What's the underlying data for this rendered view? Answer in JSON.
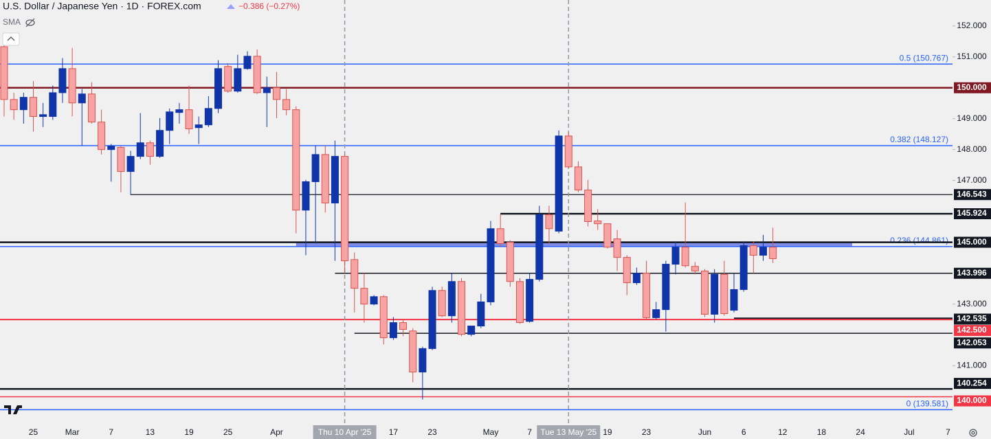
{
  "header": {
    "title": "U.S. Dollar / Japanese Yen · 1D · FOREX.com",
    "change": "−0.386 (−0.27%)",
    "indicator": "SMA"
  },
  "chart_data": {
    "type": "candlestick",
    "categories": [
      null,
      null,
      null,
      "25",
      null,
      null,
      null,
      "Mar",
      null,
      null,
      null,
      "7",
      null,
      null,
      null,
      "13",
      null,
      null,
      null,
      "19",
      null,
      null,
      null,
      "25",
      null,
      null,
      null,
      null,
      "Apr",
      null,
      null,
      null,
      "7",
      null,
      null,
      "Thu 10 Apr '25",
      null,
      null,
      null,
      null,
      "17",
      null,
      null,
      null,
      "23",
      null,
      null,
      null,
      null,
      null,
      "May",
      null,
      null,
      null,
      "7",
      null,
      null,
      null,
      "Tue 13 May '25",
      null,
      null,
      null,
      "19",
      null,
      null,
      null,
      "23",
      null,
      null,
      null,
      null,
      null,
      "Jun",
      null,
      null,
      null,
      "6",
      null,
      null,
      null,
      "12",
      null,
      null,
      null,
      "18",
      null,
      null,
      null,
      "24",
      null,
      null,
      null,
      null,
      "Jul",
      null,
      null,
      null,
      "7"
    ],
    "open": [
      151.33,
      149.62,
      149.29,
      149.69,
      149.07,
      149.07,
      149.84,
      150.62,
      149.51,
      149.8,
      148.89,
      148.0,
      148.07,
      147.29,
      147.78,
      148.22,
      147.78,
      148.62,
      149.2,
      149.29,
      148.71,
      148.8,
      149.33,
      150.69,
      149.89,
      150.62,
      151.02,
      149.84,
      150.0,
      149.62,
      149.29,
      146.04,
      146.96,
      147.84,
      146.27,
      147.78,
      144.44,
      143.51,
      143.0,
      143.24,
      141.91,
      142.4,
      142.13,
      140.8,
      141.56,
      143.44,
      142.62,
      143.73,
      142.02,
      142.29,
      143.07,
      145.44,
      145.0,
      143.73,
      142.44,
      143.8,
      145.89,
      145.36,
      148.44,
      147.44,
      146.69,
      145.69,
      145.6,
      145.11,
      144.51,
      143.69,
      144.0,
      142.56,
      142.82,
      144.29,
      144.84,
      144.22,
      144.07,
      142.67,
      143.96,
      142.8,
      143.47,
      144.89,
      144.58,
      144.84,
      null,
      null,
      null,
      null,
      null,
      null,
      null,
      null,
      null,
      null,
      null,
      null,
      null,
      null,
      null,
      null,
      null,
      null
    ],
    "high": [
      151.62,
      149.84,
      149.84,
      150.22,
      149.51,
      150.07,
      150.96,
      151.29,
      149.96,
      150.18,
      149.29,
      148.18,
      148.11,
      147.96,
      149.18,
      148.29,
      149.02,
      149.33,
      149.51,
      150.07,
      149.07,
      149.73,
      150.89,
      150.8,
      151.07,
      151.18,
      151.24,
      150.36,
      150.51,
      149.96,
      149.4,
      147.02,
      148.13,
      148.13,
      148.29,
      147.84,
      144.67,
      144.0,
      143.29,
      143.29,
      142.58,
      142.51,
      142.22,
      141.62,
      143.56,
      143.56,
      144.0,
      143.84,
      142.29,
      143.33,
      145.69,
      145.91,
      145.07,
      143.84,
      144.0,
      146.18,
      146.18,
      148.62,
      148.56,
      147.62,
      147.02,
      146.07,
      145.6,
      145.4,
      144.58,
      144.18,
      144.4,
      143.07,
      144.4,
      145.02,
      146.29,
      144.36,
      144.13,
      144.13,
      144.4,
      144.0,
      145.02,
      145.02,
      145.24,
      145.47,
      null,
      null,
      null,
      null,
      null,
      null,
      null,
      null,
      null,
      null,
      null,
      null,
      null,
      null,
      null,
      null,
      null,
      null
    ],
    "low": [
      149.07,
      148.96,
      148.84,
      148.58,
      148.73,
      148.96,
      149.51,
      149.07,
      148.13,
      148.84,
      147.84,
      146.96,
      146.62,
      146.53,
      147.69,
      147.51,
      147.73,
      148.18,
      148.84,
      148.51,
      148.18,
      148.73,
      149.18,
      149.84,
      149.84,
      150.58,
      149.8,
      148.73,
      149.02,
      149.11,
      145.29,
      144.58,
      144.96,
      145.96,
      144.4,
      144.0,
      142.73,
      142.4,
      142.96,
      141.69,
      141.84,
      141.96,
      140.47,
      139.91,
      141.51,
      142.58,
      142.4,
      141.96,
      141.96,
      142.22,
      142.96,
      144.84,
      143.56,
      142.36,
      142.4,
      143.73,
      144.96,
      145.29,
      147.4,
      146.62,
      145.51,
      145.4,
      144.8,
      144.07,
      143.29,
      143.62,
      142.51,
      142.51,
      142.11,
      143.96,
      144.18,
      143.96,
      142.58,
      142.4,
      142.62,
      142.73,
      143.4,
      144.0,
      144.4,
      144.33,
      null,
      null,
      null,
      null,
      null,
      null,
      null,
      null,
      null,
      null,
      null,
      null,
      null,
      null,
      null,
      null,
      null,
      null
    ],
    "close": [
      149.62,
      149.29,
      149.69,
      149.07,
      149.13,
      149.84,
      150.62,
      149.51,
      149.8,
      148.89,
      148.0,
      148.11,
      147.29,
      147.78,
      148.22,
      147.78,
      148.62,
      149.22,
      149.29,
      148.67,
      148.8,
      149.33,
      150.62,
      149.89,
      150.62,
      151.02,
      149.84,
      150.0,
      149.62,
      149.29,
      146.04,
      146.96,
      147.84,
      146.27,
      147.78,
      144.4,
      143.51,
      143.0,
      143.24,
      141.91,
      142.4,
      142.18,
      140.8,
      141.56,
      143.44,
      142.62,
      143.73,
      142.02,
      142.29,
      143.07,
      145.44,
      144.96,
      143.73,
      142.4,
      143.8,
      145.89,
      145.44,
      148.44,
      147.44,
      146.69,
      145.67,
      145.6,
      144.84,
      144.51,
      143.69,
      144.0,
      142.56,
      142.82,
      144.29,
      144.84,
      144.24,
      144.07,
      142.67,
      143.96,
      142.69,
      143.47,
      144.89,
      144.58,
      144.84,
      144.47,
      null,
      null,
      null,
      null,
      null,
      null,
      null,
      null,
      null,
      null,
      null,
      null,
      null,
      null,
      null,
      null,
      null,
      null
    ],
    "up_color": "#1035a8",
    "down_color": "#f7a3a3",
    "down_border": "#d9534f",
    "ylim": [
      139.1,
      152.84
    ],
    "yticks": [
      {
        "value": 152,
        "label": "152.000"
      },
      {
        "value": 151,
        "label": "151.000"
      },
      {
        "value": 149,
        "label": "149.000"
      },
      {
        "value": 148,
        "label": "148.000"
      },
      {
        "value": 147,
        "label": "147.000"
      },
      {
        "value": 143,
        "label": "143.000"
      },
      {
        "value": 141,
        "label": "141.000"
      }
    ],
    "levels": [
      {
        "label": "150.000",
        "value": 150,
        "color": "#801922"
      },
      {
        "label": "146.543",
        "value": 146.543,
        "color": "#131722"
      },
      {
        "label": "145.924",
        "value": 145.924,
        "color": "#131722"
      },
      {
        "label": "145.000",
        "value": 145,
        "color": "#131722"
      },
      {
        "label": "143.996",
        "value": 143.996,
        "color": "#131722"
      },
      {
        "label": "142.535",
        "value": 142.535,
        "color": "#131722"
      },
      {
        "label": "142.500",
        "value": 142.5,
        "color": "#f23645"
      },
      {
        "label": "142.053",
        "value": 142.053,
        "color": "#131722"
      },
      {
        "label": "140.254",
        "value": 140.254,
        "color": "#131722"
      },
      {
        "label": "140.000",
        "value": 140,
        "color": "#f23645"
      }
    ],
    "fib_color": "#2962ff",
    "fibs": [
      {
        "label": "0.5 (150.767)",
        "value": 150.767
      },
      {
        "label": "0.382 (148.127)",
        "value": 148.127
      },
      {
        "label": "0.236 (144.861)",
        "value": 144.861
      },
      {
        "label": "0 (139.581)",
        "value": 139.581
      }
    ]
  }
}
